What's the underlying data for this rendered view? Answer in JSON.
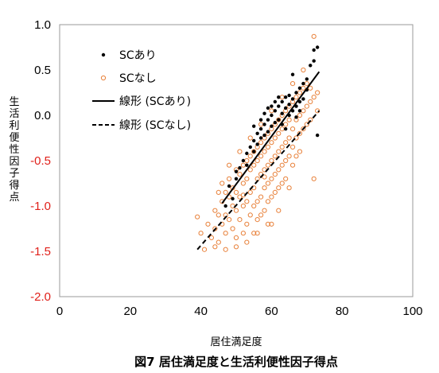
{
  "chart_data": {
    "type": "scatter",
    "title": "図7 居住満足度と生活利便性因子得点",
    "xlabel": "居住満足度",
    "ylabel": "生活利便性因子得点",
    "xlim": [
      0,
      100
    ],
    "ylim": [
      -2.0,
      1.0
    ],
    "x_ticks": [
      "0",
      "20",
      "40",
      "60",
      "80",
      "100"
    ],
    "y_ticks": [
      "1.0",
      "0.5",
      "0.0",
      "-0.5",
      "-1.0",
      "-1.5",
      "-2.0"
    ],
    "grid": false,
    "legend_position": "top-left",
    "legend": [
      {
        "label": "SCあり",
        "marker": "filled-dot",
        "color": "#000000"
      },
      {
        "label": "SCなし",
        "marker": "open-circle",
        "color": "#e8813a"
      },
      {
        "label": "線形 (SCあり)",
        "line": "solid",
        "color": "#000000"
      },
      {
        "label": "線形 (SCなし)",
        "line": "dashed",
        "color": "#000000"
      }
    ],
    "series": [
      {
        "name": "SCあり",
        "marker": "filled-dot",
        "color": "#000000",
        "points": [
          [
            47,
            -1.0
          ],
          [
            48,
            -0.78
          ],
          [
            49,
            -0.92
          ],
          [
            50,
            -0.62
          ],
          [
            50,
            -0.7
          ],
          [
            51,
            -0.58
          ],
          [
            52,
            -0.5
          ],
          [
            53,
            -0.42
          ],
          [
            53,
            -0.55
          ],
          [
            54,
            -0.35
          ],
          [
            55,
            -0.28
          ],
          [
            55,
            -0.4
          ],
          [
            56,
            -0.2
          ],
          [
            56,
            -0.32
          ],
          [
            57,
            -0.25
          ],
          [
            57,
            -0.15
          ],
          [
            58,
            -0.1
          ],
          [
            58,
            -0.22
          ],
          [
            59,
            -0.05
          ],
          [
            59,
            -0.18
          ],
          [
            60,
            0.0
          ],
          [
            60,
            -0.12
          ],
          [
            61,
            0.05
          ],
          [
            61,
            -0.08
          ],
          [
            62,
            0.1
          ],
          [
            62,
            -0.05
          ],
          [
            63,
            0.15
          ],
          [
            63,
            0.02
          ],
          [
            64,
            0.2
          ],
          [
            64,
            0.08
          ],
          [
            65,
            0.22
          ],
          [
            65,
            0.12
          ],
          [
            66,
            0.18
          ],
          [
            66,
            0.05
          ],
          [
            67,
            0.25
          ],
          [
            67,
            0.1
          ],
          [
            68,
            0.3
          ],
          [
            68,
            0.15
          ],
          [
            69,
            0.35
          ],
          [
            70,
            0.4
          ],
          [
            70,
            0.28
          ],
          [
            71,
            0.55
          ],
          [
            72,
            0.6
          ],
          [
            72,
            0.72
          ],
          [
            73,
            0.75
          ],
          [
            73,
            -0.22
          ],
          [
            64,
            -0.15
          ],
          [
            62,
            0.2
          ],
          [
            66,
            0.45
          ],
          [
            69,
            0.18
          ],
          [
            58,
            0.02
          ],
          [
            59,
            0.08
          ],
          [
            60,
            0.1
          ],
          [
            63,
            -0.1
          ],
          [
            65,
            0.0
          ],
          [
            67,
            -0.02
          ],
          [
            57,
            -0.05
          ],
          [
            61,
            0.15
          ],
          [
            68,
            0.05
          ],
          [
            55,
            -0.12
          ]
        ]
      },
      {
        "name": "SCなし",
        "marker": "open-circle",
        "color": "#e8813a",
        "points": [
          [
            39,
            -1.12
          ],
          [
            40,
            -1.3
          ],
          [
            41,
            -1.48
          ],
          [
            42,
            -1.2
          ],
          [
            43,
            -1.35
          ],
          [
            44,
            -1.05
          ],
          [
            44,
            -1.25
          ],
          [
            45,
            -1.1
          ],
          [
            45,
            -1.4
          ],
          [
            46,
            -0.95
          ],
          [
            46,
            -1.2
          ],
          [
            47,
            -0.85
          ],
          [
            47,
            -1.1
          ],
          [
            47,
            -1.3
          ],
          [
            48,
            -0.9
          ],
          [
            48,
            -1.15
          ],
          [
            48,
            -0.7
          ],
          [
            49,
            -0.8
          ],
          [
            49,
            -1.0
          ],
          [
            49,
            -1.25
          ],
          [
            50,
            -0.6
          ],
          [
            50,
            -0.85
          ],
          [
            50,
            -1.05
          ],
          [
            50,
            -1.45
          ],
          [
            51,
            -0.65
          ],
          [
            51,
            -0.9
          ],
          [
            51,
            -1.15
          ],
          [
            52,
            -0.55
          ],
          [
            52,
            -0.75
          ],
          [
            52,
            -1.0
          ],
          [
            52,
            -1.3
          ],
          [
            53,
            -0.5
          ],
          [
            53,
            -0.7
          ],
          [
            53,
            -0.95
          ],
          [
            53,
            -1.2
          ],
          [
            54,
            -0.45
          ],
          [
            54,
            -0.6
          ],
          [
            54,
            -0.85
          ],
          [
            54,
            -1.1
          ],
          [
            55,
            -0.4
          ],
          [
            55,
            -0.55
          ],
          [
            55,
            -0.8
          ],
          [
            55,
            -1.0
          ],
          [
            55,
            -1.3
          ],
          [
            56,
            -0.35
          ],
          [
            56,
            -0.5
          ],
          [
            56,
            -0.7
          ],
          [
            56,
            -0.95
          ],
          [
            56,
            -1.15
          ],
          [
            57,
            -0.3
          ],
          [
            57,
            -0.45
          ],
          [
            57,
            -0.65
          ],
          [
            57,
            -0.9
          ],
          [
            57,
            -1.1
          ],
          [
            58,
            -0.25
          ],
          [
            58,
            -0.4
          ],
          [
            58,
            -0.6
          ],
          [
            58,
            -0.8
          ],
          [
            58,
            -1.05
          ],
          [
            59,
            -0.2
          ],
          [
            59,
            -0.35
          ],
          [
            59,
            -0.55
          ],
          [
            59,
            -0.75
          ],
          [
            59,
            -0.95
          ],
          [
            60,
            -0.15
          ],
          [
            60,
            -0.3
          ],
          [
            60,
            -0.5
          ],
          [
            60,
            -0.7
          ],
          [
            60,
            -0.9
          ],
          [
            60,
            -1.2
          ],
          [
            61,
            -0.1
          ],
          [
            61,
            -0.25
          ],
          [
            61,
            -0.45
          ],
          [
            61,
            -0.65
          ],
          [
            61,
            -0.85
          ],
          [
            62,
            -0.05
          ],
          [
            62,
            -0.2
          ],
          [
            62,
            -0.4
          ],
          [
            62,
            -0.6
          ],
          [
            62,
            -0.8
          ],
          [
            63,
            0.0
          ],
          [
            63,
            -0.15
          ],
          [
            63,
            -0.35
          ],
          [
            63,
            -0.55
          ],
          [
            63,
            -0.75
          ],
          [
            64,
            0.05
          ],
          [
            64,
            -0.1
          ],
          [
            64,
            -0.3
          ],
          [
            64,
            -0.5
          ],
          [
            64,
            -0.7
          ],
          [
            65,
            0.1
          ],
          [
            65,
            -0.05
          ],
          [
            65,
            -0.25
          ],
          [
            65,
            -0.45
          ],
          [
            66,
            0.15
          ],
          [
            66,
            -0.15
          ],
          [
            66,
            -0.35
          ],
          [
            66,
            -0.55
          ],
          [
            67,
            0.2
          ],
          [
            67,
            -0.05
          ],
          [
            67,
            -0.25
          ],
          [
            67,
            -0.45
          ],
          [
            68,
            0.25
          ],
          [
            68,
            0.0
          ],
          [
            68,
            -0.2
          ],
          [
            68,
            -0.4
          ],
          [
            69,
            0.3
          ],
          [
            69,
            0.05
          ],
          [
            69,
            -0.15
          ],
          [
            70,
            0.35
          ],
          [
            70,
            0.1
          ],
          [
            70,
            -0.1
          ],
          [
            71,
            0.3
          ],
          [
            71,
            0.15
          ],
          [
            71,
            -0.05
          ],
          [
            72,
            0.87
          ],
          [
            72,
            0.2
          ],
          [
            72,
            -0.7
          ],
          [
            73,
            0.25
          ],
          [
            73,
            0.05
          ],
          [
            45,
            -0.85
          ],
          [
            46,
            -0.75
          ],
          [
            48,
            -0.55
          ],
          [
            51,
            -0.4
          ],
          [
            54,
            -0.25
          ],
          [
            57,
            -0.1
          ],
          [
            60,
            0.05
          ],
          [
            63,
            0.2
          ],
          [
            66,
            0.35
          ],
          [
            69,
            0.5
          ],
          [
            44,
            -1.45
          ],
          [
            47,
            -1.48
          ],
          [
            50,
            -1.35
          ],
          [
            53,
            -1.4
          ],
          [
            56,
            -1.3
          ],
          [
            59,
            -1.2
          ],
          [
            62,
            -1.05
          ],
          [
            65,
            -0.8
          ],
          [
            52,
            -0.88
          ],
          [
            58,
            -0.68
          ]
        ]
      }
    ],
    "trendlines": [
      {
        "name": "線形 (SCあり)",
        "style": "solid",
        "x": [
          46,
          73.5
        ],
        "y": [
          -0.97,
          0.48
        ]
      },
      {
        "name": "線形 (SCなし)",
        "style": "dashed",
        "x": [
          39,
          73.5
        ],
        "y": [
          -1.48,
          0.05
        ]
      }
    ]
  }
}
